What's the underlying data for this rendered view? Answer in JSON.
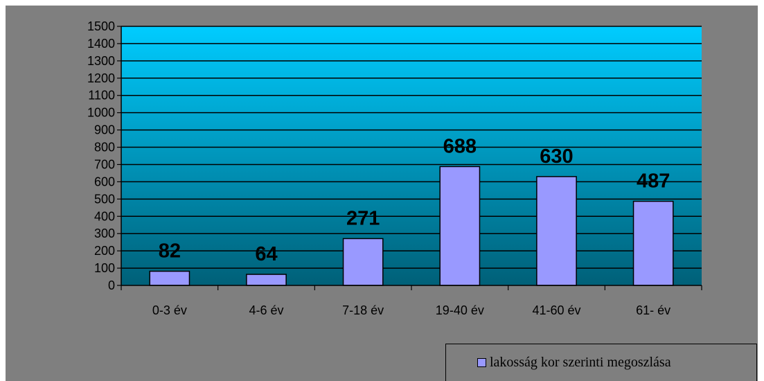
{
  "chart_data": {
    "type": "bar",
    "categories": [
      "0-3 év",
      "4-6 év",
      "7-18 év",
      "19-40 év",
      "41-60 év",
      "61- év"
    ],
    "series": [
      {
        "name": "lakosság kor szerinti megoszlása",
        "values": [
          82,
          64,
          271,
          688,
          630,
          487
        ]
      }
    ],
    "title": "",
    "xlabel": "",
    "ylabel": "",
    "ylim": [
      0,
      1500
    ],
    "y_ticks": [
      0,
      100,
      200,
      300,
      400,
      500,
      600,
      700,
      800,
      900,
      1000,
      1100,
      1200,
      1300,
      1400,
      1500
    ],
    "grid": true,
    "data_labels": true,
    "legend_position": "bottom-right",
    "colors": {
      "chart_background": "#7f7f7f",
      "plot_gradient_top": "#00ccff",
      "plot_gradient_bottom": "#006078",
      "bar_fill": "#9999ff",
      "bar_stroke": "#000000",
      "gridline": "#000000"
    }
  }
}
